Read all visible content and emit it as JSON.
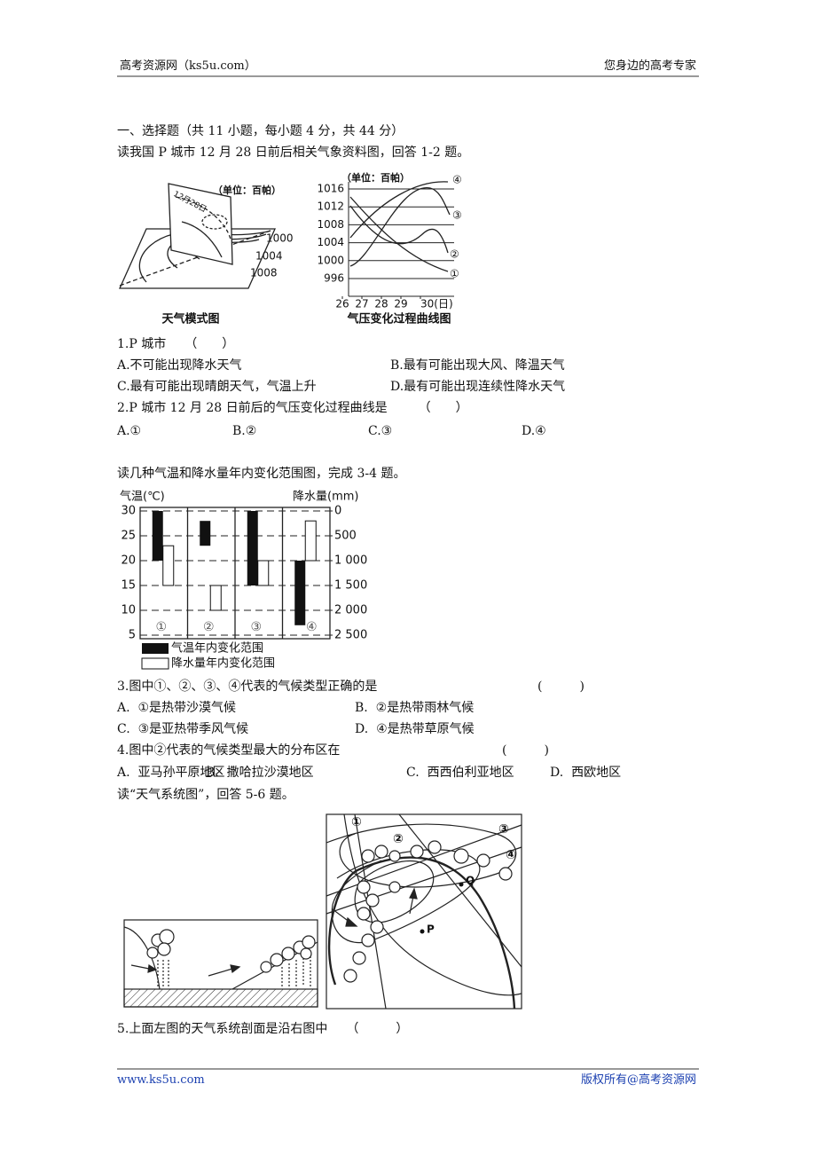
{
  "header": {
    "left": "高考资源网（ks5u.com）",
    "right": "您身边的高考专家"
  },
  "section_title": "一、选择题（共 11 小题，每小题 4 分，共 44 分）",
  "intro1": "读我国 P 城市 12 月 28 日前后相关气象资料图，回答 1-2 题。",
  "figure1": {
    "model": {
      "unit": "（单位：百帕）",
      "date": "12月28日",
      "isobars": [
        "1000",
        "1004",
        "1008"
      ],
      "caption": "天气模式图"
    },
    "pressure": {
      "unit": "（单位：百帕）",
      "yticks": [
        1016,
        1012,
        1008,
        1004,
        1000,
        996
      ],
      "xticks": [
        26,
        27,
        28,
        29,
        {
          "value": 30,
          "label": "30(日)"
        }
      ],
      "curves": [
        "①",
        "②",
        "③",
        "④"
      ],
      "caption": "气压变化过程曲线图"
    }
  },
  "q1": {
    "stem": "1.P 城市　　（　　）",
    "options": [
      "A.不可能出现降水天气",
      "B.最有可能出现大风、降温天气",
      "C.最有可能出现晴朗天气，气温上升",
      "D.最有可能出现连续性降水天气"
    ]
  },
  "q2": {
    "stem": "2.P 城市 12 月 28 日前后的气压变化过程曲线是　　　（　　）",
    "options": [
      "A.①",
      "B.②",
      "C.③",
      "D.④"
    ]
  },
  "intro2": "读几种气温和降水量年内变化范围图，完成 3-4 题。",
  "figure2": {
    "left_axis_title": "气温(℃)",
    "right_axis_title": "降水量(mm)",
    "yticks": [
      30,
      25,
      20,
      15,
      10,
      5
    ],
    "y2ticks": [
      0,
      500,
      {
        "value": 1000,
        "label": "1 000"
      },
      {
        "value": 1500,
        "label": "1 500"
      },
      {
        "value": 2000,
        "label": "2 000"
      },
      {
        "value": 2500,
        "label": "2 500"
      }
    ],
    "columns": [
      {
        "label": "①",
        "temperature": [
          30,
          20
        ],
        "precipitation": [
          700,
          1500
        ]
      },
      {
        "label": "②",
        "temperature": [
          28,
          23
        ],
        "precipitation": [
          1500,
          2000
        ]
      },
      {
        "label": "③",
        "temperature": [
          30,
          15
        ],
        "precipitation": [
          1000,
          1500
        ]
      },
      {
        "label": "④",
        "temperature": [
          20,
          7
        ],
        "precipitation": [
          200,
          1000
        ]
      }
    ],
    "legend": [
      "气温年内变化范围",
      "降水量年内变化范围"
    ]
  },
  "q3": {
    "stem": "3.图中①、②、③、④代表的气候类型正确的是",
    "blank": "(　　　)",
    "options": [
      "A.  ①是热带沙漠气候",
      "B.  ②是热带雨林气候",
      "C.  ③是亚热带季风气候",
      "D.  ④是热带草原气候"
    ]
  },
  "q4": {
    "stem": "4.图中②代表的气候类型最大的分布区在",
    "blank": "(　　　)",
    "options": [
      "A.  亚马孙平原地区",
      "B.  撒哈拉沙漠地区",
      "C.  西西伯利亚地区",
      "D.  西欧地区"
    ]
  },
  "intro3": "读“天气系统图”，回答 5-6 题。",
  "figure3": {
    "labels": [
      "①",
      "②",
      "③",
      "④"
    ],
    "points": [
      "Q",
      "P"
    ]
  },
  "q5": {
    "stem": "5.上面左图的天气系统剖面是沿右图中　　（　　　）"
  },
  "footer": {
    "left": "www.ks5u.com",
    "right": "版权所有@高考资源网"
  }
}
